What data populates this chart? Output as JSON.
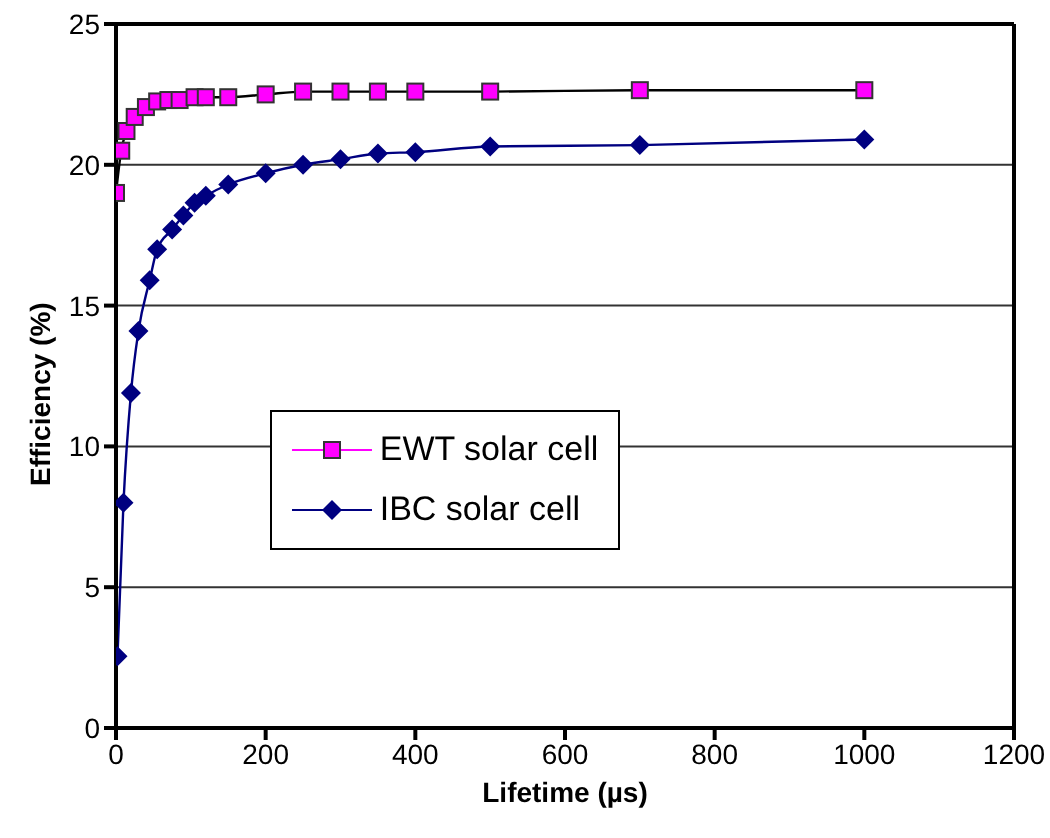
{
  "chart_data": {
    "type": "line",
    "xlabel": "Lifetime (µs)",
    "ylabel": "Efficiency (%)",
    "xlim": [
      0,
      1200
    ],
    "xticks": [
      0,
      200,
      400,
      600,
      800,
      1000,
      1200
    ],
    "ylim": [
      0,
      25
    ],
    "yticks": [
      0,
      5,
      10,
      15,
      20,
      25
    ],
    "grid": "y",
    "legend": "center",
    "series": [
      {
        "name": "EWT solar cell",
        "color": "#ff00ff",
        "marker": "square",
        "x": [
          0,
          7,
          14,
          25,
          40,
          55,
          70,
          85,
          105,
          120,
          150,
          200,
          250,
          300,
          350,
          400,
          500,
          700,
          1000
        ],
        "values": [
          19,
          20.5,
          21.2,
          21.7,
          22.05,
          22.25,
          22.3,
          22.3,
          22.4,
          22.4,
          22.4,
          22.5,
          22.6,
          22.6,
          22.6,
          22.6,
          22.6,
          22.65,
          22.65
        ]
      },
      {
        "name": "IBC solar cell",
        "color": "#000080",
        "marker": "diamond",
        "x": [
          2,
          10,
          20,
          30,
          45,
          55,
          75,
          90,
          105,
          120,
          150,
          200,
          250,
          300,
          350,
          400,
          500,
          700,
          1000
        ],
        "values": [
          2.55,
          8,
          11.9,
          14.1,
          15.9,
          17,
          17.7,
          18.2,
          18.65,
          18.9,
          19.3,
          19.7,
          20,
          20.2,
          20.4,
          20.45,
          20.65,
          20.7,
          20.9
        ]
      }
    ]
  }
}
